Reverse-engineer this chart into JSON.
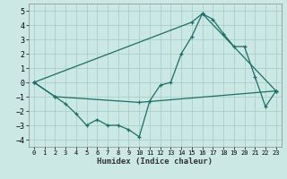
{
  "title": "",
  "xlabel": "Humidex (Indice chaleur)",
  "xlim": [
    -0.5,
    23.5
  ],
  "ylim": [
    -4.5,
    5.5
  ],
  "xticks": [
    0,
    1,
    2,
    3,
    4,
    5,
    6,
    7,
    8,
    9,
    10,
    11,
    12,
    13,
    14,
    15,
    16,
    17,
    18,
    19,
    20,
    21,
    22,
    23
  ],
  "yticks": [
    -4,
    -3,
    -2,
    -1,
    0,
    1,
    2,
    3,
    4,
    5
  ],
  "bg_color": "#cce8e4",
  "grid_color": "#aacfcc",
  "line_color": "#1a6e68",
  "series1_x": [
    0,
    2,
    3,
    4,
    5,
    6,
    7,
    8,
    9,
    10,
    11,
    12,
    13,
    14,
    15,
    16,
    17,
    18,
    19,
    20,
    21,
    22,
    23
  ],
  "series1_y": [
    0.0,
    -1.0,
    -1.5,
    -2.2,
    -3.0,
    -2.6,
    -3.0,
    -3.0,
    -3.3,
    -3.8,
    -1.3,
    -0.2,
    0.0,
    2.0,
    3.2,
    4.8,
    4.4,
    3.4,
    2.5,
    2.5,
    0.4,
    -1.7,
    -0.6
  ],
  "series2_x": [
    0,
    2,
    10,
    23
  ],
  "series2_y": [
    0.0,
    -1.0,
    -1.4,
    -0.6
  ],
  "series3_x": [
    0,
    15,
    16,
    23
  ],
  "series3_y": [
    0.0,
    4.2,
    4.8,
    -0.6
  ]
}
